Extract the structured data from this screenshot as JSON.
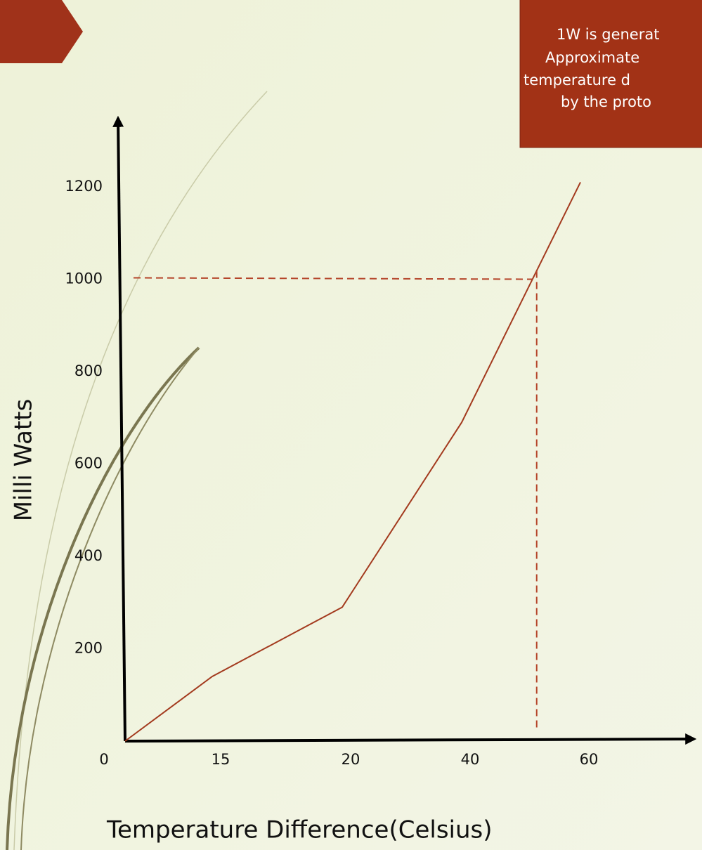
{
  "chart_data": {
    "type": "line",
    "annotation_lines": [
      "1W is generat",
      "Approximate",
      "temperature d",
      "by the proto"
    ],
    "y_label": "Milli Watts",
    "x_label": "Temperature Difference(Celsius)",
    "categories": [
      "0",
      "15",
      "20",
      "40",
      "60"
    ],
    "series": [
      {
        "name": null,
        "color": "#a33a1e",
        "values": [
          0,
          140,
          290,
          690,
          1210
        ]
      }
    ],
    "ylim": [
      0,
      1200
    ],
    "yticks": [
      200,
      400,
      600,
      800,
      1000,
      1200
    ],
    "reference_y": 1000,
    "reference_color": "#b5452a",
    "grid": false
  }
}
